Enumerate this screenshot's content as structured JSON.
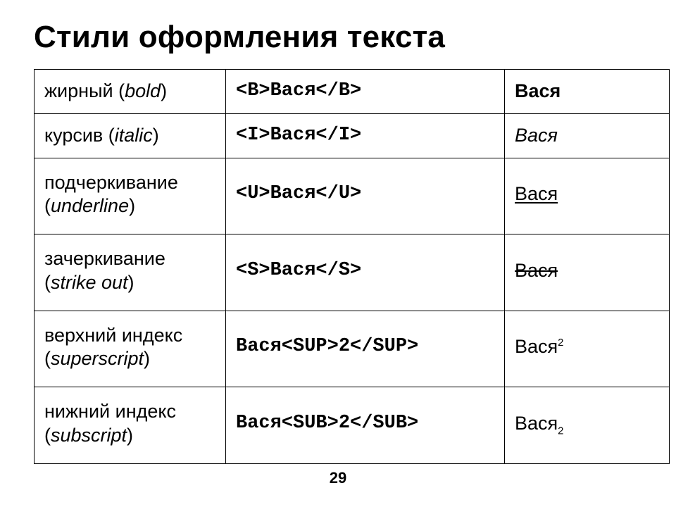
{
  "title": "Стили оформления текста",
  "pagenum": "29",
  "sample_word": "Вася",
  "sample_suffix": "2",
  "table": {
    "rows": [
      {
        "style": "bold",
        "desc_ru": "жирный",
        "desc_en": "bold",
        "code": "<B>Вася</B>",
        "result_base": "Вася",
        "result_suffix": ""
      },
      {
        "style": "italic",
        "desc_ru": "курсив",
        "desc_en": "italic",
        "code": "<I>Вася</I>",
        "result_base": "Вася",
        "result_suffix": ""
      },
      {
        "style": "underline",
        "desc_ru": "подчеркивание",
        "desc_en": "underline",
        "code": "<U>Вася</U>",
        "result_base": "Вася",
        "result_suffix": ""
      },
      {
        "style": "strike",
        "desc_ru": "зачеркивание",
        "desc_en": "strike out",
        "code": "<S>Вася</S>",
        "result_base": "Вася",
        "result_suffix": ""
      },
      {
        "style": "sup",
        "desc_ru": "верхний индекс",
        "desc_en": "superscript",
        "code": "Вася<SUP>2</SUP>",
        "result_base": "Вася",
        "result_suffix": "2"
      },
      {
        "style": "sub",
        "desc_ru": "нижний индекс",
        "desc_en": "subscript",
        "code": "Вася<SUB>2</SUB>",
        "result_base": "Вася",
        "result_suffix": "2"
      }
    ]
  },
  "colors": {
    "text": "#000000",
    "background": "#ffffff",
    "border": "#000000"
  }
}
